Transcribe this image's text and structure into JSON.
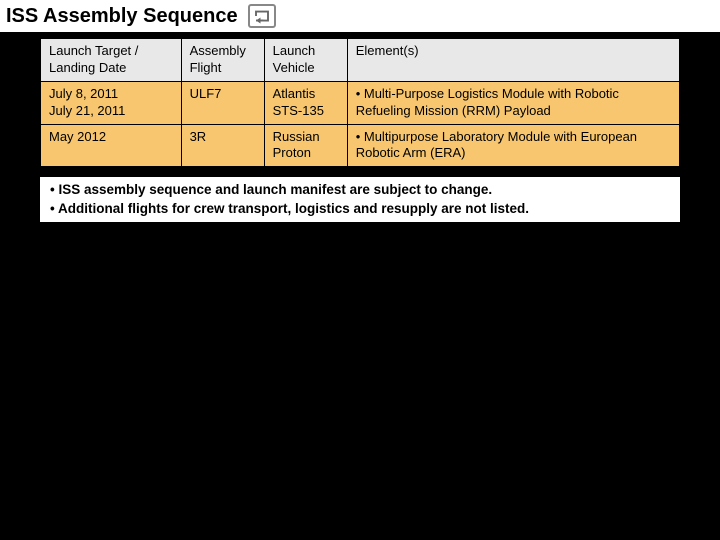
{
  "header": {
    "title": "ISS Assembly Sequence"
  },
  "table": {
    "header_bg": "#e8e8e8",
    "row_bg": "#f7c66f",
    "border_color": "#000000",
    "columns": [
      {
        "label": "Launch Target / Landing Date",
        "width": "22%"
      },
      {
        "label": "Assembly Flight",
        "width": "13%"
      },
      {
        "label": "Launch Vehicle",
        "width": "13%"
      },
      {
        "label": "Element(s)",
        "width": "52%"
      }
    ],
    "rows": [
      {
        "launch_target": "July 8, 2011\nJuly 21, 2011",
        "assembly_flight": "ULF7",
        "launch_vehicle": "Atlantis\nSTS-135",
        "elements": "• Multi-Purpose Logistics Module with Robotic Refueling Mission (RRM) Payload"
      },
      {
        "launch_target": "May 2012",
        "assembly_flight": "3R",
        "launch_vehicle": "Russian Proton",
        "elements": "• Multipurpose Laboratory Module with European Robotic Arm (ERA)"
      }
    ]
  },
  "footnotes": [
    "• ISS assembly sequence and launch manifest are subject to change.",
    "• Additional flights for crew transport, logistics and resupply are not listed."
  ],
  "colors": {
    "page_bg": "#000000",
    "header_bg": "#ffffff",
    "footnote_bg": "#ffffff"
  }
}
